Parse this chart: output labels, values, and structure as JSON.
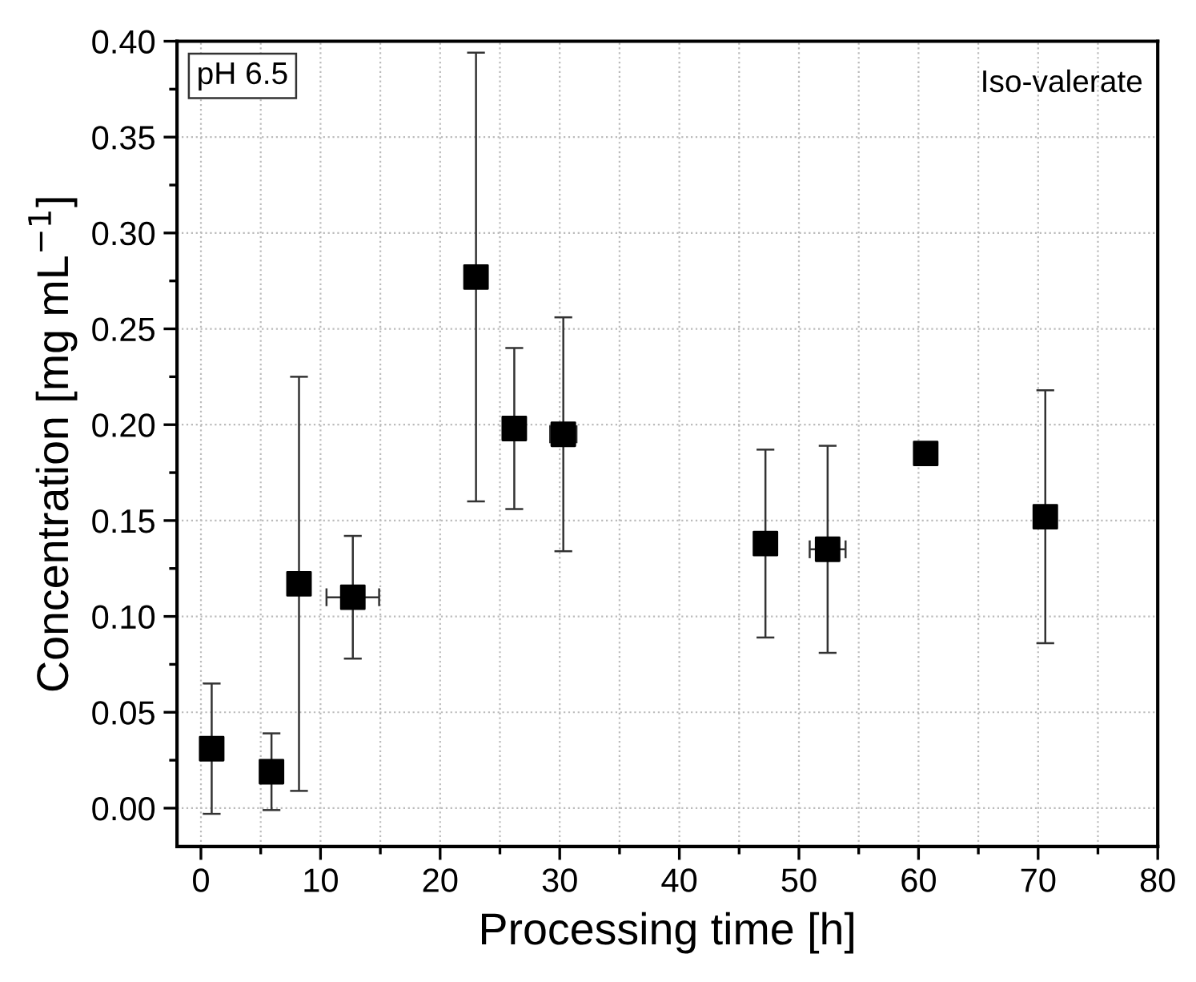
{
  "chart_data": {
    "type": "scatter",
    "xlabel": "Processing time [h]",
    "ylabel": "Concentration [mg mL$^{−1}$]",
    "annotations": [
      "pH 6.5",
      "Iso-valerate"
    ],
    "x": [
      0.9,
      5.9,
      8.2,
      12.7,
      23.0,
      26.2,
      30.3,
      47.2,
      52.4,
      60.6,
      70.6
    ],
    "series": [
      {
        "color": "#000000",
        "values": [
          0.031,
          0.019,
          0.117,
          0.11,
          0.277,
          0.198,
          0.195,
          0.138,
          0.135,
          0.185,
          0.152
        ],
        "errors": [
          0.034,
          0.02,
          0.108,
          0.032,
          0.117,
          0.042,
          0.061,
          0.049,
          0.054,
          null,
          0.066
        ],
        "xerrors": [
          null,
          null,
          null,
          2.2,
          null,
          null,
          1.1,
          null,
          1.5,
          null,
          null
        ]
      }
    ],
    "xlim": [
      -2,
      80
    ],
    "xticks": [
      0,
      10,
      20,
      30,
      40,
      50,
      60,
      70,
      80
    ],
    "ylim": [
      -0.02,
      0.4
    ],
    "yticks": [
      {
        "value": 0,
        "label": "0.00"
      },
      0.05,
      {
        "value": 0.1,
        "label": "0.10"
      },
      0.15,
      {
        "value": 0.2,
        "label": "0.20"
      },
      0.25,
      {
        "value": 0.3,
        "label": "0.30"
      },
      0.35,
      {
        "value": 0.4,
        "label": "0.40"
      }
    ],
    "grid": true,
    "marker": "square"
  }
}
